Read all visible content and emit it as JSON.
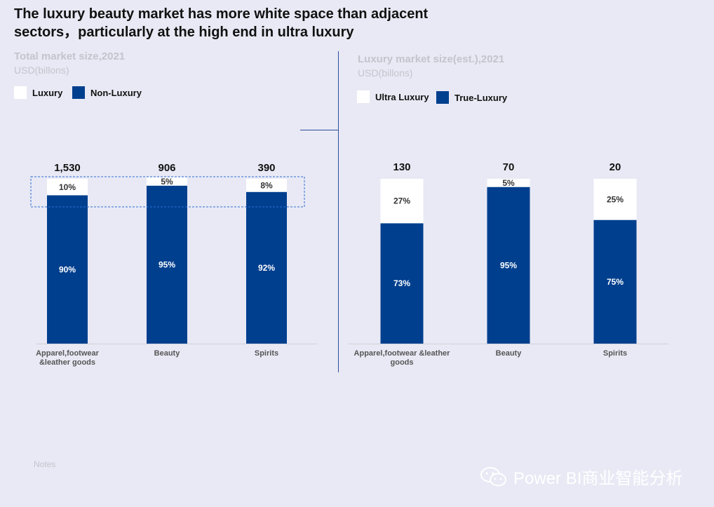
{
  "title": "The luxury beauty market has more white space than adjacent sectors，particularly at the high end in ultra luxury",
  "left_panel": {
    "title": "Total market size,2021",
    "unit": "USD(billons)",
    "legend": [
      {
        "label": "Luxury",
        "color": "#ffffff"
      },
      {
        "label": "Non-Luxury",
        "color": "#003f8e"
      }
    ]
  },
  "right_panel": {
    "title": "Luxury market size(est.),2021",
    "unit": "USD(billons)",
    "legend": [
      {
        "label": "Ultra Luxury",
        "color": "#ffffff"
      },
      {
        "label": "True-Luxury",
        "color": "#003f8e"
      }
    ]
  },
  "notes": "Notes",
  "watermark": "Power BI商业智能分析",
  "colors": {
    "top_segment": "#ffffff",
    "bottom_segment": "#003f8e",
    "background": "#e9e9f5"
  },
  "chart_data": [
    {
      "type": "bar",
      "stacked": true,
      "normalized": true,
      "title": "Total market size,2021",
      "ylabel": "USD(billons)",
      "categories": [
        "Apparel,footwear\n&leather goods",
        "Beauty",
        "Spirits"
      ],
      "totals": [
        "1,530",
        "906",
        "390"
      ],
      "series": [
        {
          "name": "Non-Luxury",
          "values": [
            90,
            95,
            92
          ],
          "labels": [
            "90%",
            "95%",
            "92%"
          ],
          "color": "#003f8e"
        },
        {
          "name": "Luxury",
          "values": [
            10,
            5,
            8
          ],
          "labels": [
            "10%",
            "5%",
            "8%"
          ],
          "color": "#ffffff"
        }
      ],
      "highlight": "luxury segments boxed with dashed outline",
      "ylim": [
        0,
        100
      ]
    },
    {
      "type": "bar",
      "stacked": true,
      "normalized": true,
      "title": "Luxury market size(est.),2021",
      "ylabel": "USD(billons)",
      "categories": [
        "Apparel,footwear &leather\ngoods",
        "Beauty",
        "Spirits"
      ],
      "totals": [
        "130",
        "70",
        "20"
      ],
      "series": [
        {
          "name": "True-Luxury",
          "values": [
            73,
            95,
            75
          ],
          "labels": [
            "73%",
            "95%",
            "75%"
          ],
          "color": "#003f8e"
        },
        {
          "name": "Ultra Luxury",
          "values": [
            27,
            5,
            25
          ],
          "labels": [
            "27%",
            "5%",
            "25%"
          ],
          "color": "#ffffff"
        }
      ],
      "ylim": [
        0,
        100
      ]
    }
  ]
}
